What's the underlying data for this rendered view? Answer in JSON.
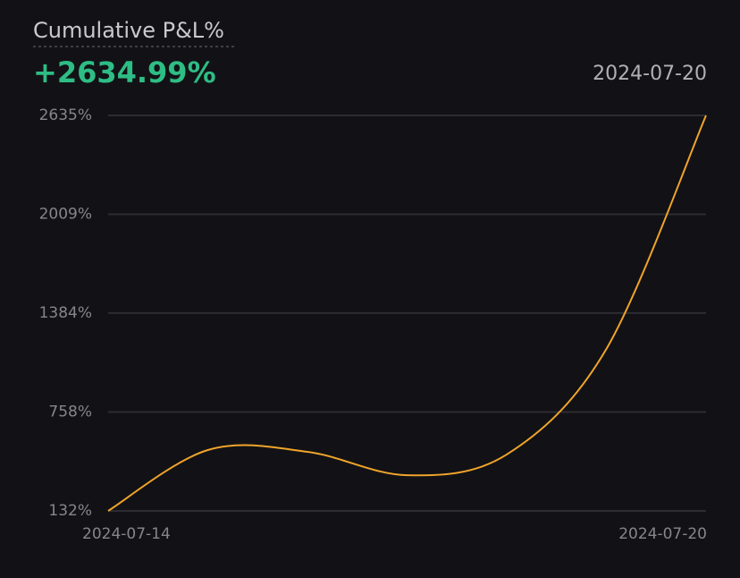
{
  "chart_data": {
    "type": "line",
    "title": "Cumulative P&L%",
    "headline": "+2634.99%",
    "date_label": "2024-07-20",
    "categories": [
      "2024-07-14",
      null,
      null,
      null,
      null,
      null,
      "2024-07-20"
    ],
    "series": [
      {
        "name": "Cumulative P&L%",
        "color": "#f0a42a",
        "values": [
          132,
          517,
          506,
          358,
          489,
          1157,
          2634.99
        ]
      }
    ],
    "ylim": [
      132,
      2635
    ],
    "yticks": [
      {
        "value": 132,
        "label": "132%"
      },
      {
        "value": 758,
        "label": "758%"
      },
      {
        "value": 1384,
        "label": "1384%"
      },
      {
        "value": 2009,
        "label": "2009%"
      },
      {
        "value": 2635,
        "label": "2635%"
      }
    ],
    "grid": true
  }
}
